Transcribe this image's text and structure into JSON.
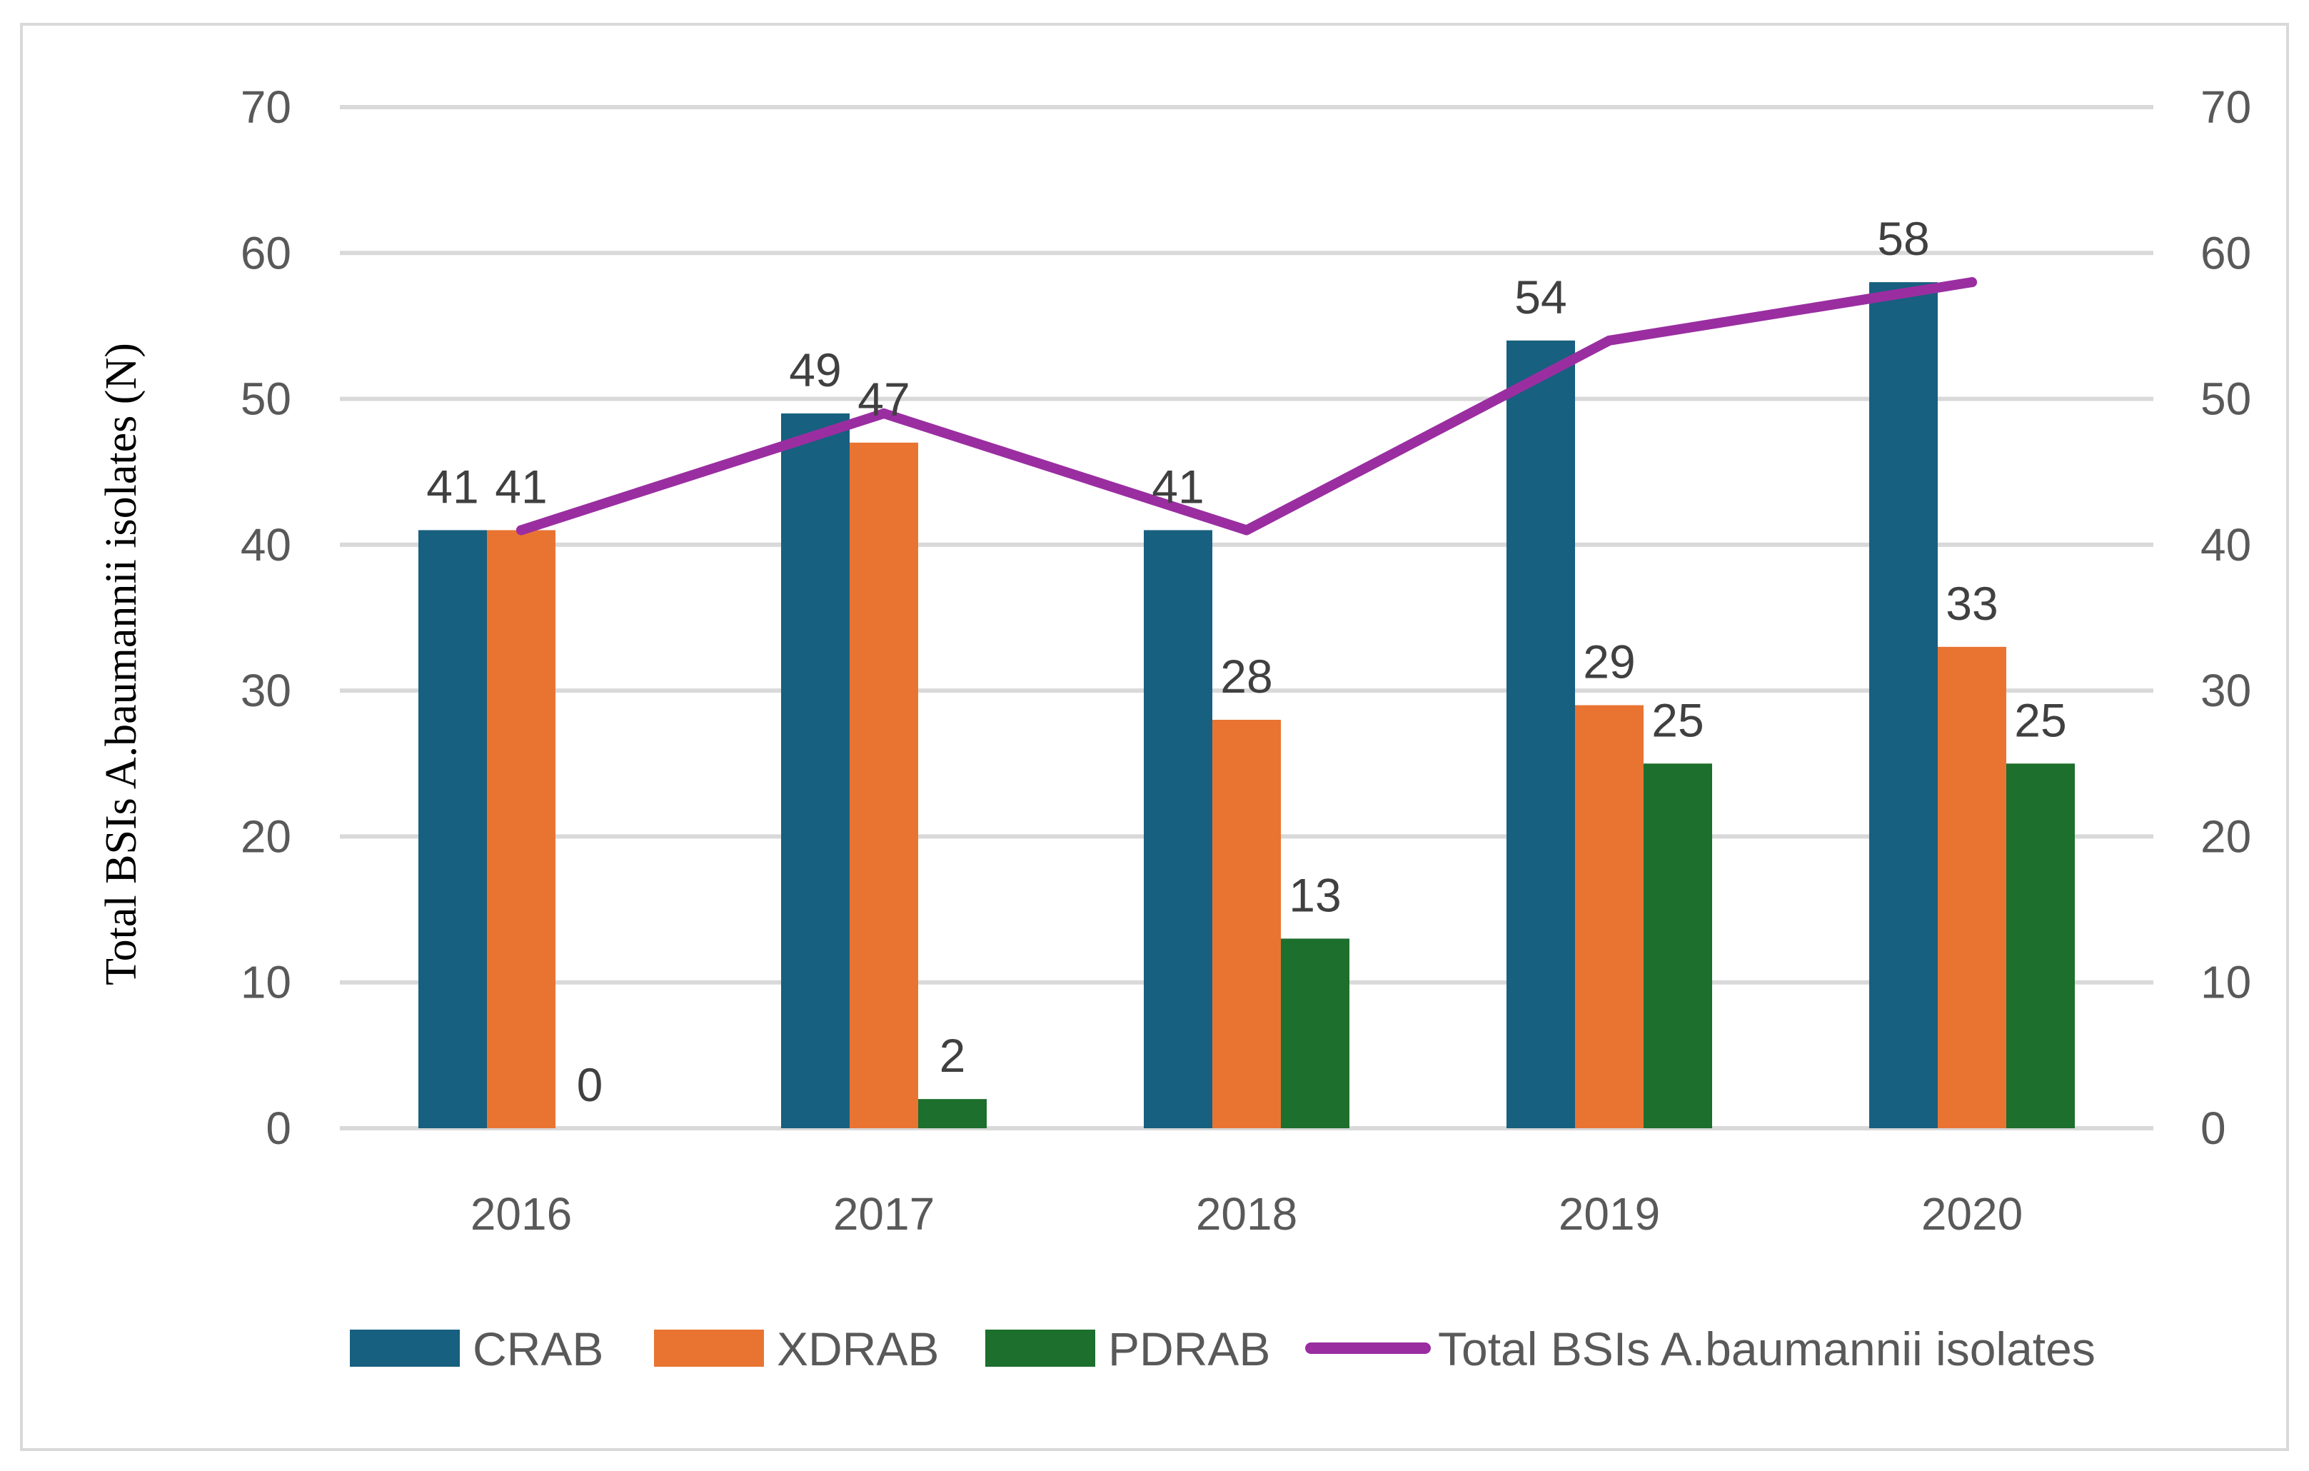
{
  "chart_data": {
    "type": "bar",
    "title": "",
    "xlabel": "",
    "ylabel": "Total BSIs A.baumannii isolates (N)",
    "ylim": [
      0,
      70
    ],
    "y_ticks": [
      "0",
      "10",
      "20",
      "30",
      "40",
      "50",
      "60",
      "70"
    ],
    "secondary_y_ticks": [
      "0",
      "10",
      "20",
      "30",
      "40",
      "50",
      "60",
      "70"
    ],
    "grid": true,
    "legend_position": "bottom",
    "categories": [
      "2016",
      "2017",
      "2018",
      "2019",
      "2020"
    ],
    "series": [
      {
        "name": "CRAB",
        "kind": "bar",
        "color": "#17607f",
        "values": [
          41,
          49,
          41,
          54,
          58
        ],
        "labels": [
          "41",
          "49",
          "41",
          "54",
          "58"
        ]
      },
      {
        "name": "XDRAB",
        "kind": "bar",
        "color": "#e97432",
        "values": [
          41,
          47,
          28,
          29,
          33
        ],
        "labels": [
          "41",
          "47",
          "28",
          "29",
          "33"
        ]
      },
      {
        "name": "PDRAB",
        "kind": "bar",
        "color": "#1c6f2c",
        "values": [
          0,
          2,
          13,
          25,
          25
        ],
        "labels": [
          "0",
          "2",
          "13",
          "25",
          "25"
        ]
      },
      {
        "name": "Total BSIs A.baumannii isolates",
        "kind": "line",
        "color": "#9a2ea1",
        "values": [
          41,
          49,
          41,
          54,
          58
        ]
      }
    ]
  }
}
